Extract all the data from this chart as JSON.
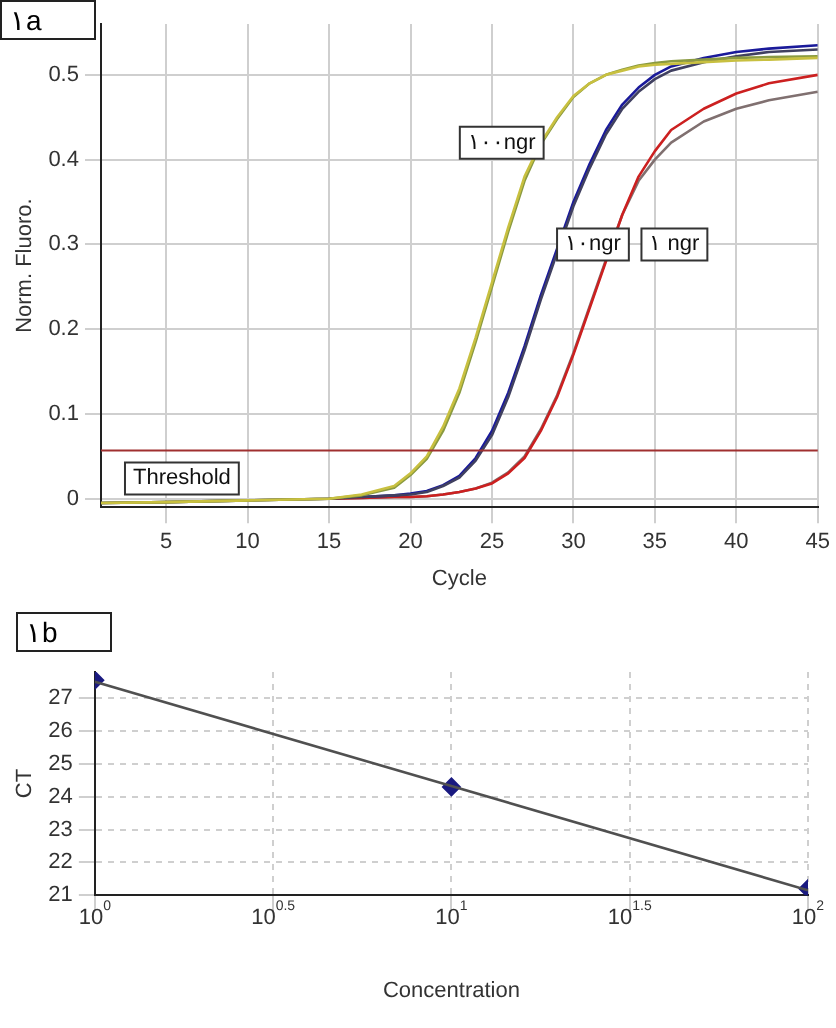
{
  "chart_data": [
    {
      "type": "line",
      "title": "۱a",
      "xlabel": "Cycle",
      "ylabel": "Norm. Fluoro.",
      "xlim": [
        1,
        45
      ],
      "xticks": [
        5,
        10,
        15,
        20,
        25,
        30,
        35,
        40,
        45
      ],
      "ylim": [
        -0.01,
        0.56
      ],
      "yticks": [
        0,
        0.1,
        0.2,
        0.3,
        0.4,
        0.5
      ],
      "grid": true,
      "x": [
        1,
        5,
        10,
        15,
        17,
        19,
        20,
        21,
        22,
        23,
        24,
        25,
        26,
        27,
        28,
        29,
        30,
        31,
        32,
        33,
        34,
        35,
        36,
        38,
        40,
        42,
        45
      ],
      "series": [
        {
          "color": "#c8c040",
          "values": [
            -0.005,
            -0.004,
            -0.002,
            0.0,
            0.005,
            0.015,
            0.03,
            0.05,
            0.085,
            0.13,
            0.19,
            0.255,
            0.32,
            0.38,
            0.42,
            0.45,
            0.475,
            0.49,
            0.5,
            0.505,
            0.51,
            0.512,
            0.513,
            0.515,
            0.517,
            0.518,
            0.52
          ]
        },
        {
          "color": "#8a9a40",
          "values": [
            -0.005,
            -0.004,
            -0.002,
            0.0,
            0.004,
            0.013,
            0.028,
            0.047,
            0.08,
            0.125,
            0.185,
            0.25,
            0.315,
            0.375,
            0.418,
            0.448,
            0.474,
            0.49,
            0.5,
            0.506,
            0.511,
            0.514,
            0.516,
            0.518,
            0.52,
            0.521,
            0.522
          ]
        },
        {
          "color": "#404060",
          "values": [
            -0.005,
            -0.004,
            -0.002,
            0.0,
            0.002,
            0.004,
            0.005,
            0.008,
            0.015,
            0.025,
            0.045,
            0.075,
            0.12,
            0.175,
            0.235,
            0.29,
            0.345,
            0.39,
            0.43,
            0.46,
            0.48,
            0.495,
            0.505,
            0.515,
            0.522,
            0.527,
            0.53
          ]
        },
        {
          "color": "#1a1a9a",
          "values": [
            null,
            null,
            null,
            null,
            0.002,
            0.004,
            0.006,
            0.009,
            0.016,
            0.027,
            0.048,
            0.08,
            0.125,
            0.18,
            0.24,
            0.295,
            0.35,
            0.395,
            0.435,
            0.465,
            0.485,
            0.5,
            0.51,
            0.52,
            0.527,
            0.531,
            0.535
          ]
        },
        {
          "color": "#cc2020",
          "values": [
            null,
            null,
            null,
            0.0,
            0.001,
            0.002,
            0.002,
            0.003,
            0.005,
            0.008,
            0.012,
            0.018,
            0.03,
            0.048,
            0.08,
            0.12,
            0.17,
            0.225,
            0.28,
            0.335,
            0.38,
            0.41,
            0.435,
            0.46,
            0.478,
            0.49,
            0.5
          ]
        },
        {
          "color": "#807070",
          "values": [
            -0.005,
            -0.004,
            -0.002,
            0.0,
            0.001,
            0.002,
            0.002,
            0.003,
            0.005,
            0.008,
            0.012,
            0.019,
            0.031,
            0.05,
            0.082,
            0.122,
            0.172,
            0.227,
            0.282,
            0.335,
            0.375,
            0.4,
            0.42,
            0.445,
            0.46,
            0.47,
            0.48
          ]
        }
      ],
      "ref_lines": [
        {
          "axis": "y",
          "value": 0.057,
          "label": "Threshold",
          "color": "#a03030"
        }
      ],
      "annotations": [
        {
          "text": "۱۰۰ngr",
          "x": 25.6,
          "y": 0.42
        },
        {
          "text": "۱۰ngr",
          "x": 31.2,
          "y": 0.3
        },
        {
          "text": "۱ ngr",
          "x": 36.2,
          "y": 0.3
        }
      ]
    },
    {
      "type": "line",
      "title": "۱b",
      "xlabel": "Concentration",
      "ylabel": "CT",
      "log": "x",
      "xlim": [
        1,
        100
      ],
      "xticks": [
        {
          "value": 1,
          "label": "10$^{0}$"
        },
        {
          "value": 3.162,
          "label": "10$^{0.5}$"
        },
        {
          "value": 10,
          "label": "10$^{1}$"
        },
        {
          "value": 31.62,
          "label": "10$^{1.5}$"
        },
        {
          "value": 100,
          "label": "10$^{2}$"
        }
      ],
      "ylim": [
        21,
        27.8
      ],
      "yticks": [
        21,
        22,
        23,
        24,
        25,
        26,
        27
      ],
      "grid": true,
      "series": [
        {
          "type": "line",
          "x": [
            1,
            100
          ],
          "values": [
            27.5,
            21.15
          ],
          "color": "#505050",
          "marker": "none"
        },
        {
          "type": "scatter",
          "x": [
            1,
            10,
            100
          ],
          "values": [
            27.55,
            24.3,
            21.2
          ],
          "color": "#1a1a80",
          "marker": "diamond"
        }
      ]
    }
  ]
}
